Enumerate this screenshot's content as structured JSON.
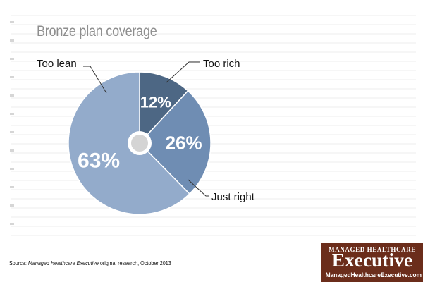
{
  "title": "Bronze plan coverage",
  "chart_data": {
    "type": "pie",
    "title": "Bronze plan coverage",
    "slices": [
      {
        "label": "Too rich",
        "value": 12,
        "value_label": "12%",
        "color": "#4d6784"
      },
      {
        "label": "Just right",
        "value": 26,
        "value_label": "26%",
        "color": "#6f8db3"
      },
      {
        "label": "Too lean",
        "value": 63,
        "value_label": "63%",
        "color": "#93abcb"
      }
    ],
    "legend": "none"
  },
  "source": {
    "prefix": "Source: ",
    "italic": "Managed Healthcare Executive",
    "suffix": " original research, October 2013"
  },
  "logo": {
    "top": "Managed Healthcare",
    "main": "Executive",
    "url": "ManagedHealthcareExecutive.com"
  }
}
